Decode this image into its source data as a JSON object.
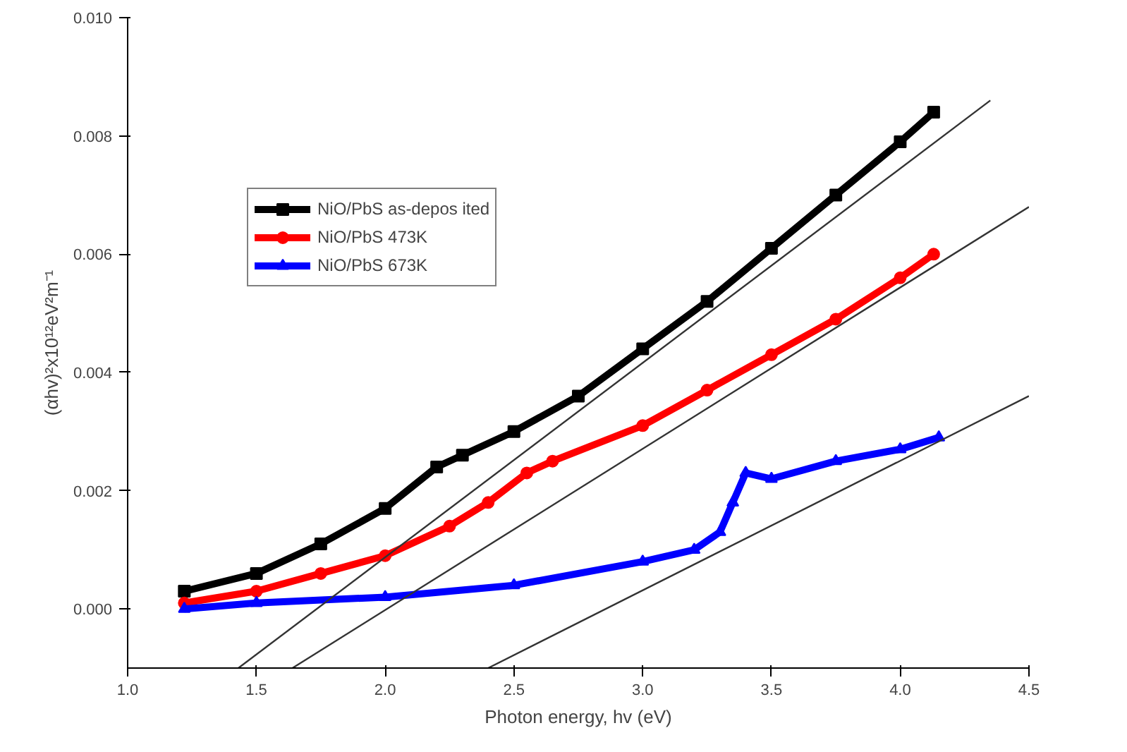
{
  "chart_data": {
    "type": "line",
    "xlabel": "Photon energy, hv (eV)",
    "ylabel": "(αhv)²x10¹²eV²m⁻¹",
    "xlim": [
      1.0,
      4.5
    ],
    "xticks": [
      {
        "value": 1.0,
        "label": "1.0"
      },
      {
        "value": 1.5,
        "label": "1.5"
      },
      {
        "value": 2.0,
        "label": "2.0"
      },
      {
        "value": 2.5,
        "label": "2.5"
      },
      {
        "value": 3.0,
        "label": "3.0"
      },
      {
        "value": 3.5,
        "label": "3.5"
      },
      {
        "value": 4.0,
        "label": "4.0"
      },
      {
        "value": 4.5,
        "label": "4.5"
      }
    ],
    "ylim": [
      -0.001,
      0.01
    ],
    "yticks": [
      {
        "value": 0,
        "label": "0.000"
      },
      {
        "value": 0.002,
        "label": "0.002"
      },
      {
        "value": 0.004,
        "label": "0.004"
      },
      {
        "value": 0.006,
        "label": "0.006"
      },
      {
        "value": 0.008,
        "label": "0.008"
      },
      {
        "value": 0.01,
        "label": "0.010"
      }
    ],
    "grid": false,
    "legend": "top left",
    "series": [
      {
        "name": "NiO/PbS as-depos ited",
        "color": "#000000",
        "marker": "square",
        "x": [
          1.22,
          1.5,
          1.75,
          2.0,
          2.2,
          2.3,
          2.5,
          2.75,
          3.0,
          3.25,
          3.5,
          3.75,
          4.0,
          4.13
        ],
        "values": [
          0.0003,
          0.0006,
          0.0011,
          0.0017,
          0.0024,
          0.0026,
          0.003,
          0.0036,
          0.0044,
          0.0052,
          0.0061,
          0.007,
          0.0079,
          0.0084
        ]
      },
      {
        "name": "NiO/PbS 473K",
        "color": "#ff0000",
        "marker": "circle",
        "x": [
          1.22,
          1.5,
          1.75,
          2.0,
          2.25,
          2.4,
          2.55,
          2.65,
          3.0,
          3.25,
          3.5,
          3.75,
          4.0,
          4.13
        ],
        "values": [
          0.0001,
          0.0003,
          0.0006,
          0.0009,
          0.0014,
          0.0018,
          0.0023,
          0.0025,
          0.0031,
          0.0037,
          0.0043,
          0.0049,
          0.0056,
          0.006
        ]
      },
      {
        "name": "NiO/PbS 673K",
        "color": "#0000ff",
        "marker": "triangle",
        "x": [
          1.22,
          1.5,
          2.0,
          2.5,
          3.0,
          3.2,
          3.3,
          3.35,
          3.4,
          3.5,
          3.75,
          4.0,
          4.15
        ],
        "values": [
          0.0,
          0.0001,
          0.0002,
          0.0004,
          0.0008,
          0.001,
          0.0013,
          0.0018,
          0.0023,
          0.0022,
          0.0025,
          0.0027,
          0.0029
        ]
      },
      {
        "type": "line",
        "color": "#333333",
        "marker": "none",
        "x": [
          1.43,
          4.35
        ],
        "values": [
          -0.001,
          0.0086
        ]
      },
      {
        "type": "line",
        "color": "#333333",
        "marker": "none",
        "x": [
          1.64,
          4.5
        ],
        "values": [
          -0.001,
          0.0068
        ]
      },
      {
        "type": "line",
        "color": "#333333",
        "marker": "none",
        "x": [
          2.4,
          4.5
        ],
        "values": [
          -0.001,
          0.0036
        ]
      }
    ]
  }
}
